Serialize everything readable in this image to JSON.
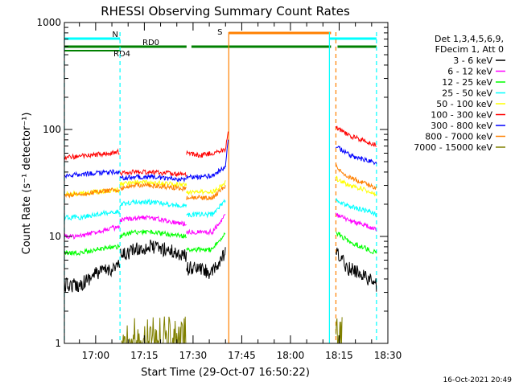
{
  "chart_data": {
    "type": "line",
    "title": "RHESSI Observing Summary Count Rates",
    "xlabel": "Start Time (29-Oct-07 16:50:22)",
    "ylabel": "Count Rate (s⁻¹ detector⁻¹)",
    "y_scale": "log",
    "ylim": [
      1,
      1000
    ],
    "xlim": [
      "16:50:22",
      "18:30:00"
    ],
    "x_ticks": [
      "17:00",
      "17:15",
      "17:30",
      "17:45",
      "18:00",
      "18:15",
      "18:30"
    ],
    "y_ticks": [
      "1",
      "10",
      "100",
      "1000"
    ],
    "legend_position": "right",
    "legend_header": [
      "Det 1,3,4,5,6,9,",
      "FDecim 1, Att 0"
    ],
    "timestamp": "16-Oct-2021 20:49",
    "flag_labels": {
      "night": "N",
      "saa": "S",
      "rd0": "RD0",
      "rd4": "RD4"
    },
    "flags": {
      "night_color": "#00ffff",
      "saa_color": "#ff8000",
      "rd_color": "#008000",
      "night": [
        [
          "16:50:22",
          "17:07:30"
        ],
        [
          "18:12:00",
          "18:26:30"
        ]
      ],
      "saa": [
        [
          "17:41:00",
          "18:12:30"
        ]
      ],
      "rd0": [
        [
          "16:50:22",
          "17:28:00"
        ],
        [
          "17:29:30",
          "18:12:30"
        ],
        [
          "18:14:30",
          "18:26:30"
        ]
      ],
      "rd4": [
        [
          "16:50:22",
          "17:07:30"
        ]
      ]
    },
    "vlines": [
      {
        "time": "16:50:22",
        "color": "#00ffff",
        "style": "dashed"
      },
      {
        "time": "17:07:30",
        "color": "#00ffff",
        "style": "dashed"
      },
      {
        "time": "17:41:00",
        "color": "#ff8000",
        "style": "solid"
      },
      {
        "time": "18:12:00",
        "color": "#00ffff",
        "style": "solid"
      },
      {
        "time": "18:14:00",
        "color": "#ff8000",
        "style": "dashed"
      },
      {
        "time": "18:26:30",
        "color": "#00ffff",
        "style": "dashed"
      }
    ],
    "series": [
      {
        "name": "3 - 6 keV",
        "color": "#000000",
        "segments": [
          {
            "t": [
              "16:50:22",
              "16:55",
              "17:00",
              "17:05",
              "17:07:30"
            ],
            "v": [
              3.5,
              3.5,
              4.5,
              5.0,
              5.5
            ]
          },
          {
            "t": [
              "17:07:30",
              "17:12",
              "17:17",
              "17:22",
              "17:28"
            ],
            "v": [
              6.5,
              7.5,
              8.0,
              7.5,
              6.5
            ]
          },
          {
            "t": [
              "17:28",
              "17:32",
              "17:36",
              "17:40"
            ],
            "v": [
              5.0,
              5.0,
              4.5,
              7.0
            ]
          },
          {
            "t": [
              "18:14",
              "18:18",
              "18:22",
              "18:26:30"
            ],
            "v": [
              7.0,
              5.0,
              4.5,
              3.5
            ]
          }
        ]
      },
      {
        "name": "6 - 12 keV",
        "color": "#ff00ff",
        "segments": [
          {
            "t": [
              "16:50:22",
              "16:55",
              "17:00",
              "17:05",
              "17:07:30"
            ],
            "v": [
              10,
              10,
              11,
              12,
              12
            ]
          },
          {
            "t": [
              "17:07:30",
              "17:12",
              "17:17",
              "17:22",
              "17:28"
            ],
            "v": [
              14,
              15,
              15,
              14,
              13
            ]
          },
          {
            "t": [
              "17:28",
              "17:32",
              "17:36",
              "17:40"
            ],
            "v": [
              11,
              11,
              11,
              16
            ]
          },
          {
            "t": [
              "18:14",
              "18:18",
              "18:22",
              "18:26:30"
            ],
            "v": [
              16,
              14,
              13,
              11.5
            ]
          }
        ]
      },
      {
        "name": "12 - 25 keV",
        "color": "#00ff00",
        "segments": [
          {
            "t": [
              "16:50:22",
              "16:55",
              "17:00",
              "17:05",
              "17:07:30"
            ],
            "v": [
              7,
              7,
              7.5,
              8,
              8
            ]
          },
          {
            "t": [
              "17:07:30",
              "17:12",
              "17:17",
              "17:22",
              "17:28"
            ],
            "v": [
              10,
              11,
              11,
              10.5,
              10
            ]
          },
          {
            "t": [
              "17:28",
              "17:32",
              "17:36",
              "17:40"
            ],
            "v": [
              7.5,
              7.5,
              7.5,
              11
            ]
          },
          {
            "t": [
              "18:14",
              "18:18",
              "18:22",
              "18:26:30"
            ],
            "v": [
              11,
              9,
              8,
              7
            ]
          }
        ]
      },
      {
        "name": "25 - 50 keV",
        "color": "#00ffff",
        "segments": [
          {
            "t": [
              "16:50:22",
              "16:55",
              "17:00",
              "17:05",
              "17:07:30"
            ],
            "v": [
              15,
              15,
              16,
              17,
              17
            ]
          },
          {
            "t": [
              "17:07:30",
              "17:12",
              "17:17",
              "17:22",
              "17:28"
            ],
            "v": [
              20,
              21,
              21,
              20,
              19
            ]
          },
          {
            "t": [
              "17:28",
              "17:32",
              "17:36",
              "17:40"
            ],
            "v": [
              16,
              16,
              16,
              22
            ]
          },
          {
            "t": [
              "18:14",
              "18:18",
              "18:22",
              "18:26:30"
            ],
            "v": [
              22,
              19,
              18,
              16
            ]
          }
        ]
      },
      {
        "name": "50 - 100 keV",
        "color": "#ffff00",
        "segments": [
          {
            "t": [
              "16:50:22",
              "16:55",
              "17:00",
              "17:05",
              "17:07:30"
            ],
            "v": [
              25,
              25,
              26,
              27,
              27
            ]
          },
          {
            "t": [
              "17:07:30",
              "17:12",
              "17:17",
              "17:22",
              "17:28"
            ],
            "v": [
              31,
              32,
              32,
              31,
              30
            ]
          },
          {
            "t": [
              "17:28",
              "17:32",
              "17:36",
              "17:40"
            ],
            "v": [
              26,
              26,
              26,
              32
            ]
          },
          {
            "t": [
              "18:14",
              "18:18",
              "18:22",
              "18:26:30"
            ],
            "v": [
              35,
              30,
              28,
              25
            ]
          }
        ]
      },
      {
        "name": "100 - 300 keV",
        "color": "#ff0000",
        "segments": [
          {
            "t": [
              "16:50:22",
              "16:55",
              "17:00",
              "17:05",
              "17:07:30"
            ],
            "v": [
              55,
              56,
              58,
              60,
              62
            ]
          },
          {
            "t": [
              "17:07:30",
              "17:12",
              "17:17",
              "17:22",
              "17:28"
            ],
            "v": [
              39,
              40,
              40,
              39,
              38
            ]
          },
          {
            "t": [
              "17:28",
              "17:32",
              "17:36",
              "17:40",
              "17:41"
            ],
            "v": [
              60,
              57,
              60,
              65,
              100
            ]
          },
          {
            "t": [
              "18:14",
              "18:18",
              "18:22",
              "18:26:30"
            ],
            "v": [
              105,
              88,
              80,
              71
            ]
          }
        ]
      },
      {
        "name": "300 - 800 keV",
        "color": "#0000ff",
        "segments": [
          {
            "t": [
              "16:50:22",
              "16:55",
              "17:00",
              "17:05",
              "17:07:30"
            ],
            "v": [
              37,
              38,
              39,
              40,
              40
            ]
          },
          {
            "t": [
              "17:07:30",
              "17:12",
              "17:17",
              "17:22",
              "17:28"
            ],
            "v": [
              35,
              36,
              36,
              35,
              34
            ]
          },
          {
            "t": [
              "17:28",
              "17:32",
              "17:36",
              "17:40",
              "17:41"
            ],
            "v": [
              36,
              36,
              37,
              45,
              90
            ]
          },
          {
            "t": [
              "18:14",
              "18:18",
              "18:22",
              "18:26:30"
            ],
            "v": [
              70,
              58,
              53,
              48
            ]
          }
        ]
      },
      {
        "name": "800 - 7000 keV",
        "color": "#ff8000",
        "segments": [
          {
            "t": [
              "16:50:22",
              "16:55",
              "17:00",
              "17:05",
              "17:07:30"
            ],
            "v": [
              24,
              25,
              26,
              27,
              27
            ]
          },
          {
            "t": [
              "17:07:30",
              "17:12",
              "17:17",
              "17:22",
              "17:28"
            ],
            "v": [
              28,
              30,
              30,
              29,
              28
            ]
          },
          {
            "t": [
              "17:28",
              "17:32",
              "17:36",
              "17:40"
            ],
            "v": [
              23,
              23,
              23,
              30
            ]
          },
          {
            "t": [
              "18:14",
              "18:18",
              "18:22",
              "18:26:30"
            ],
            "v": [
              45,
              36,
              32,
              28
            ]
          }
        ]
      },
      {
        "name": "7000 - 15000 keV",
        "color": "#808000",
        "segments": [
          {
            "t": [
              "17:08",
              "17:12",
              "17:17",
              "17:22",
              "17:28"
            ],
            "v": [
              1.8,
              1.8,
              1.8,
              1.8,
              1.7
            ]
          },
          {
            "t": [
              "18:14",
              "18:15",
              "18:16"
            ],
            "v": [
              1.7,
              1.7,
              1.7
            ]
          }
        ]
      }
    ]
  }
}
